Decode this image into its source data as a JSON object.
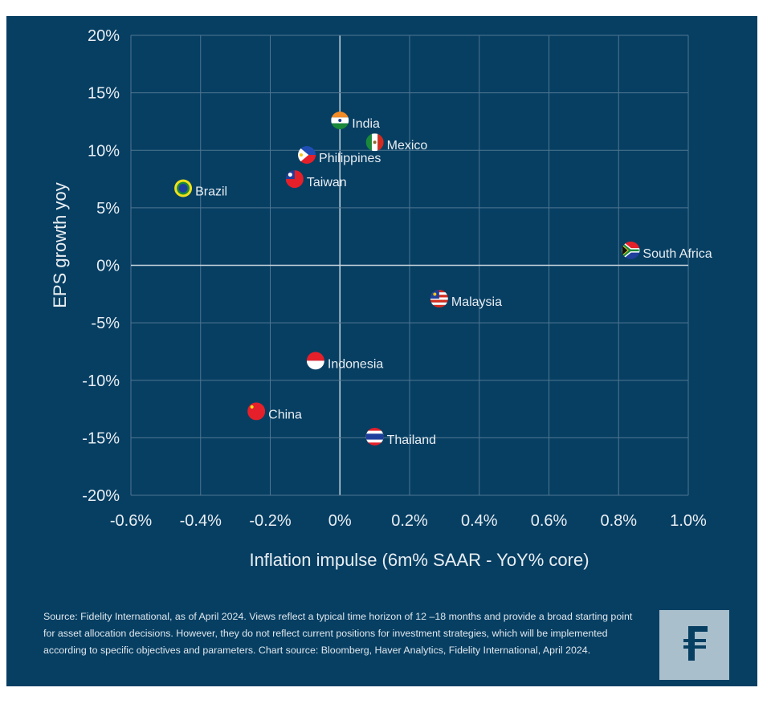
{
  "chart_data": {
    "type": "scatter",
    "xlabel": "Inflation impulse (6m% SAAR - YoY% core)",
    "ylabel": "EPS growth yoy",
    "xlim": [
      -0.6,
      1.0
    ],
    "ylim": [
      -20,
      20
    ],
    "xticks": [
      "-0.6%",
      "-0.4%",
      "-0.2%",
      "0%",
      "0.2%",
      "0.4%",
      "0.6%",
      "0.8%",
      "1.0%"
    ],
    "yticks": [
      "20%",
      "15%",
      "10%",
      "5%",
      "0%",
      "-5%",
      "-10%",
      "-15%",
      "-20%"
    ],
    "grid": true,
    "points": [
      {
        "label": "India",
        "x": 0.0,
        "y": 12.6,
        "flag": "india"
      },
      {
        "label": "Mexico",
        "x": 0.1,
        "y": 10.7,
        "flag": "mexico"
      },
      {
        "label": "Philippines",
        "x": -0.095,
        "y": 9.6,
        "flag": "philippines"
      },
      {
        "label": "Taiwan",
        "x": -0.13,
        "y": 7.5,
        "flag": "taiwan"
      },
      {
        "label": "Brazil",
        "x": -0.45,
        "y": 6.7,
        "flag": "brazil"
      },
      {
        "label": "South Africa",
        "x": 0.835,
        "y": 1.3,
        "flag": "south-africa"
      },
      {
        "label": "Malaysia",
        "x": 0.285,
        "y": -2.9,
        "flag": "malaysia"
      },
      {
        "label": "Indonesia",
        "x": -0.07,
        "y": -8.3,
        "flag": "indonesia"
      },
      {
        "label": "China",
        "x": -0.24,
        "y": -12.7,
        "flag": "china"
      },
      {
        "label": "Thailand",
        "x": 0.1,
        "y": -14.9,
        "flag": "thailand"
      }
    ]
  },
  "colors": {
    "background": "#073f63",
    "grid": "#4f7690",
    "text": "#e8eef2",
    "logo_bg": "#a9bfcc"
  },
  "footer": {
    "source": "Source: Fidelity International, as of April 2024. Views reflect a typical time horizon of 12 –18 months and provide a broad starting point for asset allocation decisions. However, they do not reflect current positions for investment strategies, which will be implemented according to specific objectives and parameters. Chart source: Bloomberg, Haver Analytics, Fidelity International, April 2024.",
    "logo_icon": "fidelity-logo-icon"
  }
}
